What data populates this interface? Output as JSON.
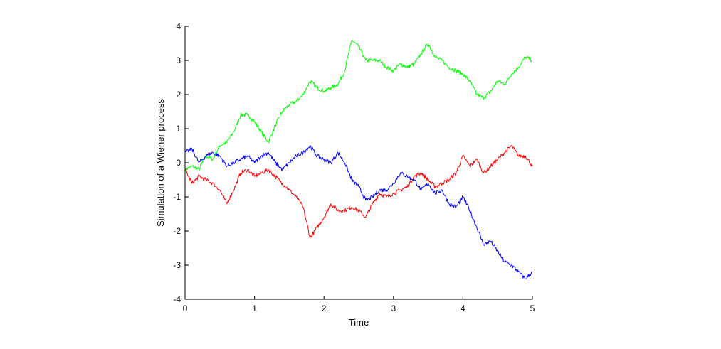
{
  "chart_data": {
    "type": "line",
    "xlabel": "Time",
    "ylabel": "Simulation of a Wiener process",
    "xlim": [
      0,
      5
    ],
    "ylim": [
      -4,
      4
    ],
    "xticks": [
      0,
      1,
      2,
      3,
      4,
      5
    ],
    "yticks": [
      -4,
      -3,
      -2,
      -1,
      0,
      1,
      2,
      3,
      4
    ],
    "grid": false,
    "legend": "none",
    "series": [
      {
        "color": "#00ff00",
        "x": [
          0,
          0.1,
          0.2,
          0.3,
          0.4,
          0.5,
          0.6,
          0.7,
          0.8,
          0.9,
          1.0,
          1.1,
          1.2,
          1.3,
          1.4,
          1.5,
          1.6,
          1.7,
          1.8,
          1.9,
          2.0,
          2.1,
          2.2,
          2.3,
          2.4,
          2.5,
          2.6,
          2.7,
          2.8,
          2.9,
          3.0,
          3.1,
          3.2,
          3.3,
          3.4,
          3.5,
          3.6,
          3.7,
          3.8,
          3.9,
          4.0,
          4.1,
          4.2,
          4.3,
          4.4,
          4.5,
          4.6,
          4.7,
          4.8,
          4.9,
          5.0
        ],
        "y": [
          -0.2,
          -0.1,
          -0.2,
          0.2,
          0.1,
          0.5,
          0.6,
          0.9,
          1.4,
          1.4,
          1.2,
          0.9,
          0.6,
          1.1,
          1.5,
          1.7,
          1.8,
          2.0,
          2.4,
          2.2,
          2.1,
          2.2,
          2.3,
          2.7,
          3.6,
          3.4,
          3.0,
          3.0,
          3.0,
          2.8,
          2.7,
          2.9,
          2.8,
          2.9,
          3.2,
          3.5,
          3.1,
          3.0,
          2.8,
          2.7,
          2.6,
          2.4,
          2.0,
          1.9,
          2.1,
          2.4,
          2.3,
          2.6,
          2.8,
          3.1,
          3.0
        ]
      },
      {
        "color": "#ff0000",
        "x": [
          0,
          0.1,
          0.2,
          0.3,
          0.4,
          0.5,
          0.6,
          0.7,
          0.8,
          0.9,
          1.0,
          1.1,
          1.2,
          1.3,
          1.4,
          1.5,
          1.6,
          1.7,
          1.8,
          1.9,
          2.0,
          2.1,
          2.2,
          2.3,
          2.4,
          2.5,
          2.6,
          2.7,
          2.8,
          2.9,
          3.0,
          3.1,
          3.2,
          3.3,
          3.4,
          3.5,
          3.6,
          3.7,
          3.8,
          3.9,
          4.0,
          4.1,
          4.2,
          4.3,
          4.4,
          4.5,
          4.6,
          4.7,
          4.8,
          4.9,
          5.0
        ],
        "y": [
          -0.2,
          -0.6,
          -0.4,
          -0.5,
          -0.6,
          -0.8,
          -1.2,
          -0.8,
          -0.3,
          -0.2,
          -0.4,
          -0.3,
          -0.2,
          -0.4,
          -0.6,
          -0.8,
          -1.0,
          -1.3,
          -2.2,
          -1.9,
          -1.6,
          -1.2,
          -1.4,
          -1.4,
          -1.3,
          -1.4,
          -1.6,
          -1.2,
          -0.9,
          -1.0,
          -0.9,
          -0.8,
          -0.7,
          -0.4,
          -0.3,
          -0.5,
          -0.7,
          -0.6,
          -0.5,
          -0.3,
          0.2,
          -0.1,
          0.1,
          -0.3,
          -0.1,
          0.1,
          0.3,
          0.5,
          0.2,
          0.2,
          -0.1
        ]
      },
      {
        "color": "#0000ff",
        "x": [
          0,
          0.1,
          0.2,
          0.3,
          0.4,
          0.5,
          0.6,
          0.7,
          0.8,
          0.9,
          1.0,
          1.1,
          1.2,
          1.3,
          1.4,
          1.5,
          1.6,
          1.7,
          1.8,
          1.9,
          2.0,
          2.1,
          2.2,
          2.3,
          2.4,
          2.5,
          2.6,
          2.7,
          2.8,
          2.9,
          3.0,
          3.1,
          3.2,
          3.3,
          3.4,
          3.5,
          3.6,
          3.7,
          3.8,
          3.9,
          4.0,
          4.1,
          4.2,
          4.3,
          4.4,
          4.5,
          4.6,
          4.7,
          4.8,
          4.9,
          5.0
        ],
        "y": [
          0.3,
          0.4,
          0.0,
          0.2,
          0.3,
          0.2,
          -0.1,
          0.0,
          0.1,
          0.2,
          0.0,
          0.2,
          0.3,
          0.0,
          -0.2,
          0.0,
          0.2,
          0.3,
          0.5,
          0.2,
          0.1,
          0.0,
          0.3,
          0.0,
          -0.5,
          -0.7,
          -1.1,
          -1.0,
          -0.8,
          -0.8,
          -0.6,
          -0.3,
          -0.4,
          -0.5,
          -0.8,
          -0.6,
          -0.9,
          -0.8,
          -1.2,
          -1.3,
          -1.0,
          -1.4,
          -1.9,
          -2.4,
          -2.3,
          -2.6,
          -2.9,
          -3.0,
          -3.2,
          -3.4,
          -3.2
        ]
      }
    ]
  }
}
